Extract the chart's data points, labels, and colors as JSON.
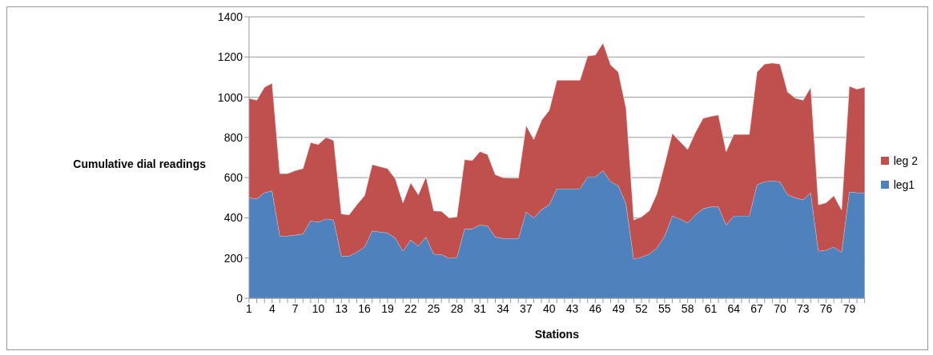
{
  "chart_data": {
    "type": "area",
    "stacked": true,
    "xlabel": "Stations",
    "ylabel": "Cumulative dial readings",
    "categories": [
      "1",
      null,
      null,
      "4",
      null,
      null,
      "7",
      null,
      null,
      "10",
      null,
      null,
      "13",
      null,
      null,
      "16",
      null,
      null,
      "19",
      null,
      null,
      "22",
      null,
      null,
      "25",
      null,
      null,
      "28",
      null,
      null,
      "31",
      null,
      null,
      "34",
      null,
      null,
      "37",
      null,
      null,
      "40",
      null,
      null,
      "43",
      null,
      null,
      "46",
      null,
      null,
      "49",
      null,
      null,
      "52",
      null,
      null,
      "55",
      null,
      null,
      "58",
      null,
      null,
      "61",
      null,
      null,
      "64",
      null,
      null,
      "67",
      null,
      null,
      "70",
      null,
      null,
      "73",
      null,
      null,
      "76",
      null,
      null,
      "79",
      null,
      null
    ],
    "series": [
      {
        "name": "leg1",
        "color": "#4f81bd",
        "values": [
          500,
          495,
          525,
          535,
          310,
          310,
          315,
          320,
          385,
          380,
          395,
          390,
          210,
          210,
          230,
          255,
          335,
          330,
          325,
          300,
          235,
          290,
          260,
          305,
          220,
          218,
          200,
          203,
          345,
          345,
          365,
          360,
          305,
          298,
          298,
          298,
          430,
          400,
          440,
          465,
          545,
          545,
          545,
          545,
          605,
          605,
          635,
          580,
          560,
          470,
          195,
          205,
          220,
          250,
          310,
          410,
          395,
          375,
          415,
          445,
          455,
          455,
          365,
          410,
          410,
          410,
          565,
          580,
          585,
          580,
          515,
          500,
          490,
          525,
          235,
          240,
          255,
          230,
          530,
          525,
          525
        ]
      },
      {
        "name": "leg 2",
        "color": "#c0504d",
        "values": [
          495,
          490,
          525,
          535,
          310,
          310,
          320,
          325,
          390,
          385,
          405,
          395,
          210,
          205,
          235,
          255,
          330,
          325,
          320,
          295,
          240,
          285,
          255,
          300,
          215,
          215,
          200,
          202,
          345,
          340,
          365,
          355,
          310,
          302,
          300,
          300,
          430,
          390,
          445,
          470,
          540,
          540,
          540,
          540,
          600,
          605,
          635,
          580,
          565,
          475,
          195,
          200,
          215,
          270,
          355,
          410,
          385,
          365,
          410,
          450,
          450,
          457,
          365,
          405,
          405,
          405,
          560,
          585,
          585,
          585,
          510,
          495,
          495,
          525,
          230,
          235,
          255,
          210,
          525,
          515,
          525
        ]
      }
    ],
    "ylim": [
      0,
      1400
    ],
    "yticks": [
      0,
      200,
      400,
      600,
      800,
      1000,
      1200,
      1400
    ],
    "grid": "y",
    "legend": "right"
  }
}
